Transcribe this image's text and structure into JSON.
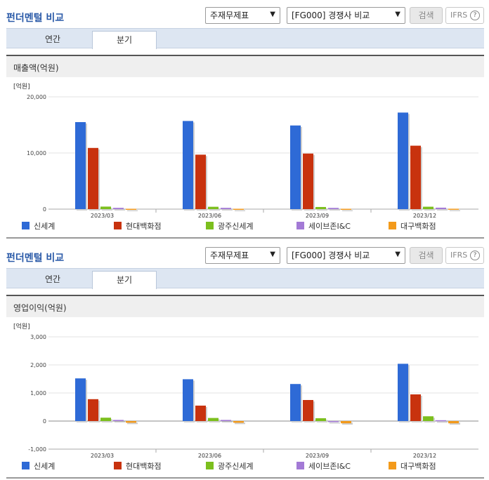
{
  "panels": [
    {
      "title": "펀더멘털 비교",
      "select1": "주재무제표",
      "select2": "[FG000] 경쟁사 비교",
      "search_btn": "검색",
      "ifrs_label": "IFRS",
      "ifrs_help": "?",
      "tabs": [
        "연간",
        "분기"
      ],
      "active_tab": "분기",
      "chart_title": "매출액(억원)"
    },
    {
      "title": "펀더멘털 비교",
      "select1": "주재무제표",
      "select2": "[FG000] 경쟁사 비교",
      "search_btn": "검색",
      "ifrs_label": "IFRS",
      "ifrs_help": "?",
      "tabs": [
        "연간",
        "분기"
      ],
      "active_tab": "분기",
      "chart_title": "영업이익(억원)"
    }
  ],
  "colors": {
    "신세계": "#2e6ad6",
    "현대백화점": "#c8320e",
    "광주신세계": "#7cbf1e",
    "세이브존I&C": "#a37ad6",
    "대구백화점": "#f39a1b"
  },
  "chart_data": [
    {
      "type": "bar",
      "unit_label": "[억원]",
      "categories": [
        "2023/03",
        "2023/06",
        "2023/09",
        "2023/12"
      ],
      "ylim": [
        0,
        20000
      ],
      "yticks": [
        "20,000",
        "10,000",
        "0"
      ],
      "grid": true,
      "legend_position": "bottom",
      "series": [
        {
          "name": "신세계",
          "values": [
            15500,
            15700,
            14900,
            17200
          ]
        },
        {
          "name": "현대백화점",
          "values": [
            10900,
            9700,
            9900,
            11300
          ]
        },
        {
          "name": "광주신세계",
          "values": [
            450,
            420,
            380,
            430
          ]
        },
        {
          "name": "세이브존I&C",
          "values": [
            230,
            230,
            220,
            260
          ]
        },
        {
          "name": "대구백화점",
          "values": [
            60,
            60,
            60,
            70
          ]
        }
      ]
    },
    {
      "type": "bar",
      "unit_label": "[억원]",
      "categories": [
        "2023/03",
        "2023/06",
        "2023/09",
        "2023/12"
      ],
      "ylim": [
        -1000,
        3000
      ],
      "yticks": [
        "3,000",
        "2,000",
        "1,000",
        "0",
        "-1,000"
      ],
      "grid": true,
      "legend_position": "bottom",
      "series": [
        {
          "name": "신세계",
          "values": [
            1520,
            1490,
            1320,
            2040
          ]
        },
        {
          "name": "현대백화점",
          "values": [
            780,
            550,
            750,
            950
          ]
        },
        {
          "name": "광주신세계",
          "values": [
            120,
            110,
            100,
            170
          ]
        },
        {
          "name": "세이브존I&C",
          "values": [
            40,
            40,
            0,
            30
          ]
        },
        {
          "name": "대구백화점",
          "values": [
            -60,
            -60,
            -80,
            -80
          ]
        }
      ]
    }
  ]
}
